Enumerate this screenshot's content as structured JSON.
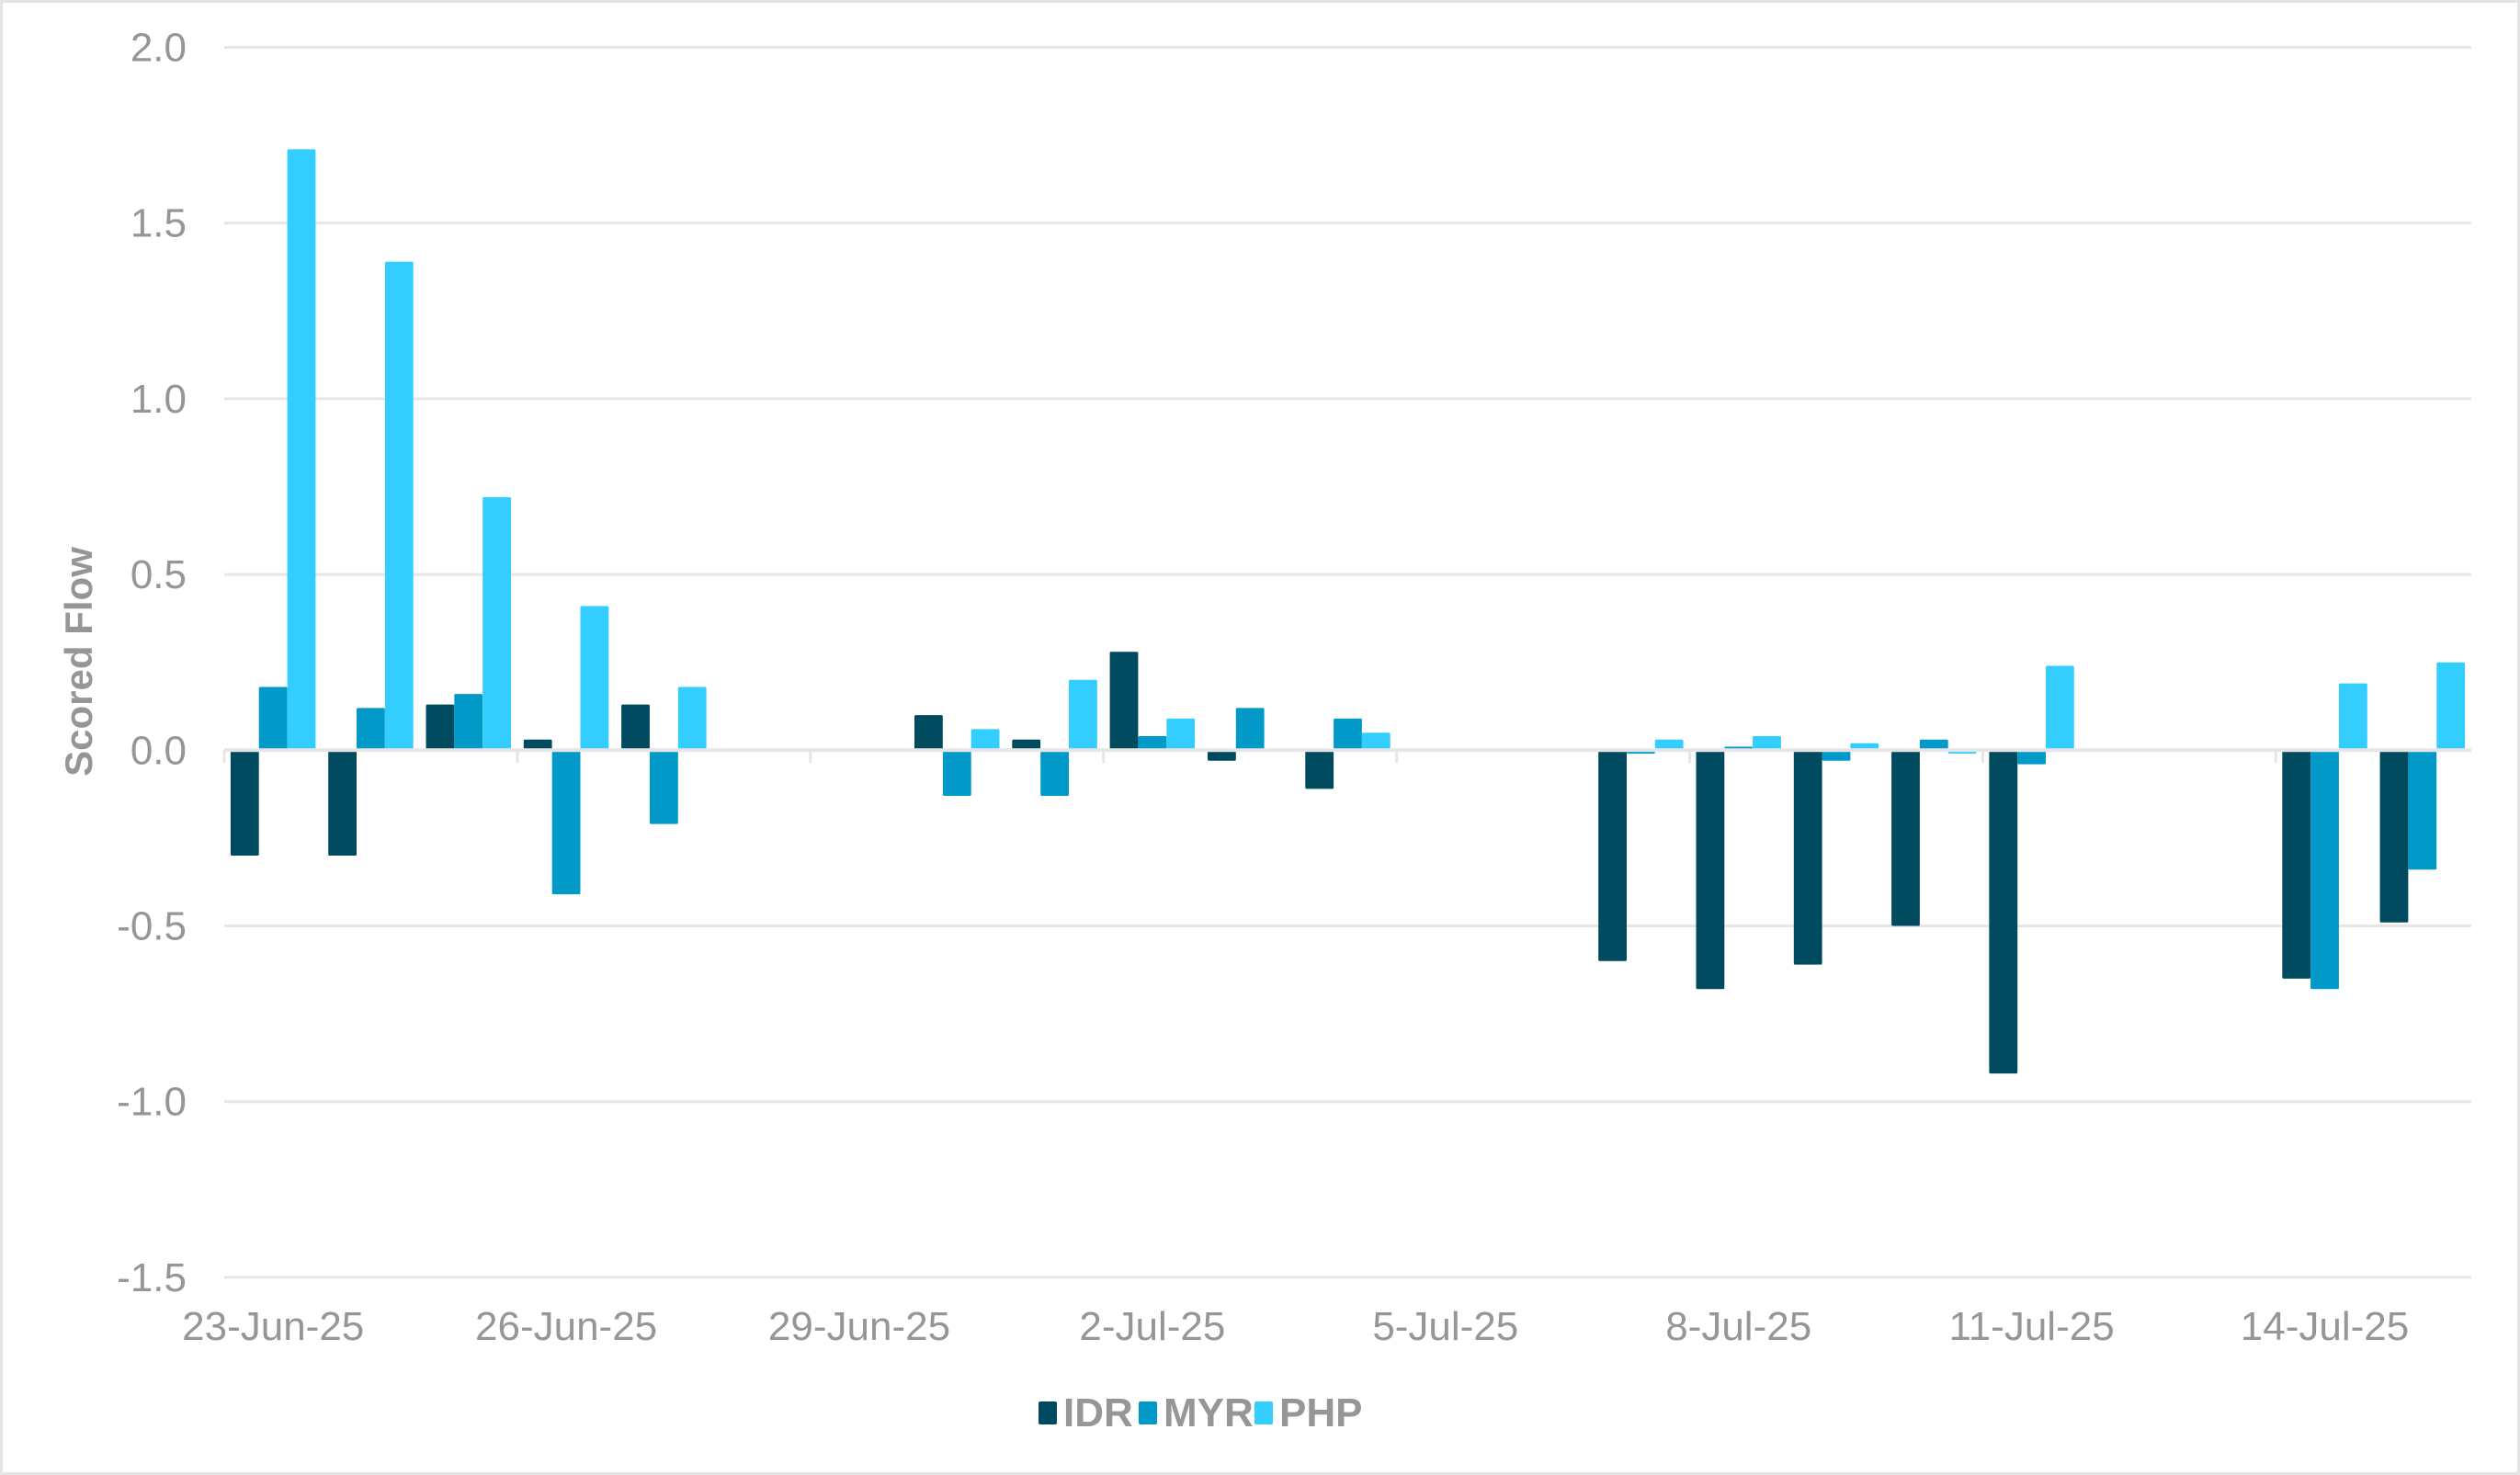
{
  "chart_data": {
    "type": "bar",
    "title": "",
    "xlabel": "",
    "ylabel": "Scored Flow",
    "ylim": [
      -1.5,
      2.0
    ],
    "yticks": [
      "2.0",
      "1.5",
      "1.0",
      "0.5",
      "0.0",
      "-0.5",
      "-1.0",
      "-1.5"
    ],
    "ytick_values": [
      2.0,
      1.5,
      1.0,
      0.5,
      0.0,
      -0.5,
      -1.0,
      -1.5
    ],
    "grid": true,
    "legend_position": "bottom",
    "x_tick_labels": [
      "23-Jun-25",
      "26-Jun-25",
      "29-Jun-25",
      "2-Jul-25",
      "5-Jul-25",
      "8-Jul-25",
      "11-Jul-25",
      "14-Jul-25"
    ],
    "categories": [
      "23-Jun-25",
      "24-Jun-25",
      "25-Jun-25",
      "26-Jun-25",
      "27-Jun-25",
      "28-Jun-25",
      "29-Jun-25",
      "30-Jun-25",
      "1-Jul-25",
      "2-Jul-25",
      "3-Jul-25",
      "4-Jul-25",
      "5-Jul-25",
      "6-Jul-25",
      "7-Jul-25",
      "8-Jul-25",
      "9-Jul-25",
      "10-Jul-25",
      "11-Jul-25",
      "12-Jul-25",
      "13-Jul-25",
      "14-Jul-25",
      "15-Jul-25"
    ],
    "series": [
      {
        "name": "IDR",
        "color": "#004A60",
        "values": [
          -0.3,
          -0.3,
          0.13,
          0.03,
          0.13,
          null,
          null,
          0.1,
          0.03,
          0.28,
          -0.03,
          -0.11,
          null,
          null,
          -0.6,
          -0.68,
          -0.61,
          -0.5,
          -0.92,
          null,
          null,
          -0.65,
          -0.49
        ]
      },
      {
        "name": "MYR",
        "color": "#0099C8",
        "values": [
          0.18,
          0.12,
          0.16,
          -0.41,
          -0.21,
          null,
          null,
          -0.13,
          -0.13,
          0.04,
          0.12,
          0.09,
          null,
          null,
          -0.01,
          0.01,
          -0.03,
          0.03,
          -0.04,
          null,
          null,
          -0.68,
          -0.34
        ]
      },
      {
        "name": "PHP",
        "color": "#33CEFF",
        "values": [
          1.71,
          1.39,
          0.72,
          0.41,
          0.18,
          null,
          null,
          0.06,
          0.2,
          0.09,
          null,
          0.05,
          null,
          null,
          0.03,
          0.04,
          0.02,
          -0.01,
          0.24,
          null,
          null,
          0.19,
          0.25
        ]
      }
    ]
  },
  "legend": {
    "items": [
      {
        "label": "IDR",
        "color": "#004A60"
      },
      {
        "label": "MYR",
        "color": "#0099C8"
      },
      {
        "label": "PHP",
        "color": "#33CEFF"
      }
    ]
  },
  "style": {
    "gridline_color": "#E6E6E6",
    "text_color": "#969696",
    "border_color": "#E4E4E4"
  }
}
